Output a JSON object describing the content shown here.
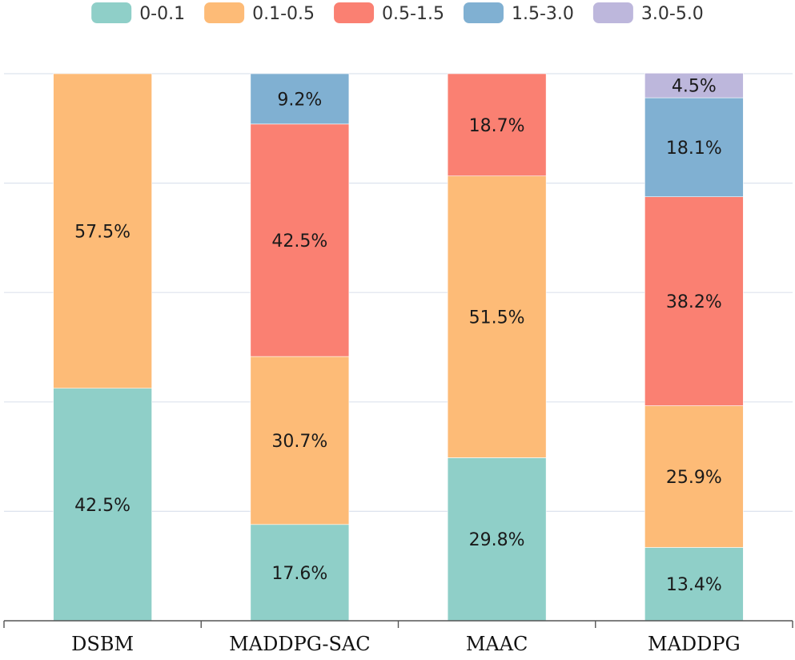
{
  "chart_data": {
    "type": "bar",
    "stacked": true,
    "normalized_percent": true,
    "title": "",
    "xlabel": "",
    "ylabel": "",
    "ylim": [
      0,
      100
    ],
    "grid": true,
    "legend_position": "top",
    "categories": [
      "DSBM",
      "MADDPG-SAC",
      "MAAC",
      "MADDPG"
    ],
    "series": [
      {
        "name": "0-0.1",
        "color": "#8fcfc8",
        "values": [
          42.5,
          17.6,
          29.8,
          13.4
        ]
      },
      {
        "name": "0.1-0.5",
        "color": "#fdbb77",
        "values": [
          57.5,
          30.7,
          51.5,
          25.9
        ]
      },
      {
        "name": "0.5-1.5",
        "color": "#fa8072",
        "values": [
          0,
          42.5,
          18.7,
          38.2
        ]
      },
      {
        "name": "1.5-3.0",
        "color": "#80b0d2",
        "values": [
          0,
          9.2,
          0,
          18.1
        ]
      },
      {
        "name": "3.0-5.0",
        "color": "#bdb7dc",
        "values": [
          0,
          0,
          0,
          4.5
        ]
      }
    ],
    "value_suffix": "%"
  }
}
